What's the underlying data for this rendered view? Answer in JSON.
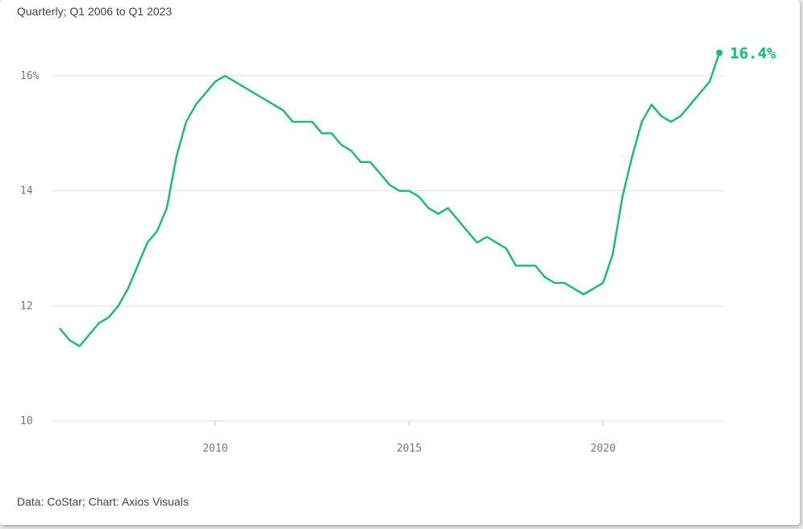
{
  "subtitle": "Quarterly; Q1 2006 to Q1 2023",
  "source": "Data: CoStar; Chart: Axios Visuals",
  "colors": {
    "line": "#10c06a",
    "grid": "#e2e2e2"
  },
  "chart_data": {
    "type": "line",
    "title": "",
    "xlabel": "",
    "ylabel": "",
    "xlim": [
      2006.0,
      2023.0
    ],
    "ylim": [
      10,
      16.8
    ],
    "y_ticks": [
      {
        "value": 10,
        "label": "10"
      },
      {
        "value": 12,
        "label": "12"
      },
      {
        "value": 14,
        "label": "14"
      },
      {
        "value": 16,
        "label": "16%"
      }
    ],
    "x_ticks": [
      {
        "value": 2010,
        "label": "2010"
      },
      {
        "value": 2015,
        "label": "2015"
      },
      {
        "value": 2020,
        "label": "2020"
      }
    ],
    "grid": "horizontal",
    "end_label": "16.4%",
    "series": [
      {
        "x": [
          "2006 Q1",
          "2006 Q2",
          "2006 Q3",
          "2006 Q4",
          "2007 Q1",
          "2007 Q2",
          "2007 Q3",
          "2007 Q4",
          "2008 Q1",
          "2008 Q2",
          "2008 Q3",
          "2008 Q4",
          "2009 Q1",
          "2009 Q2",
          "2009 Q3",
          "2009 Q4",
          "2010 Q1",
          "2010 Q2",
          "2010 Q3",
          "2010 Q4",
          "2011 Q1",
          "2011 Q2",
          "2011 Q3",
          "2011 Q4",
          "2012 Q1",
          "2012 Q2",
          "2012 Q3",
          "2012 Q4",
          "2013 Q1",
          "2013 Q2",
          "2013 Q3",
          "2013 Q4",
          "2014 Q1",
          "2014 Q2",
          "2014 Q3",
          "2014 Q4",
          "2015 Q1",
          "2015 Q2",
          "2015 Q3",
          "2015 Q4",
          "2016 Q1",
          "2016 Q2",
          "2016 Q3",
          "2016 Q4",
          "2017 Q1",
          "2017 Q2",
          "2017 Q3",
          "2017 Q4",
          "2018 Q1",
          "2018 Q2",
          "2018 Q3",
          "2018 Q4",
          "2019 Q1",
          "2019 Q2",
          "2019 Q3",
          "2019 Q4",
          "2020 Q1",
          "2020 Q2",
          "2020 Q3",
          "2020 Q4",
          "2021 Q1",
          "2021 Q2",
          "2021 Q3",
          "2021 Q4",
          "2022 Q1",
          "2022 Q2",
          "2022 Q3",
          "2022 Q4",
          "2023 Q1"
        ],
        "values": [
          11.6,
          11.4,
          11.3,
          11.5,
          11.7,
          11.8,
          12.0,
          12.3,
          12.7,
          13.1,
          13.3,
          13.7,
          14.6,
          15.2,
          15.5,
          15.7,
          15.9,
          16.0,
          15.9,
          15.8,
          15.7,
          15.6,
          15.5,
          15.4,
          15.2,
          15.2,
          15.2,
          15.0,
          15.0,
          14.8,
          14.7,
          14.5,
          14.5,
          14.3,
          14.1,
          14.0,
          14.0,
          13.9,
          13.7,
          13.6,
          13.7,
          13.5,
          13.3,
          13.1,
          13.2,
          13.1,
          13.0,
          12.7,
          12.7,
          12.7,
          12.5,
          12.4,
          12.4,
          12.3,
          12.2,
          12.3,
          12.4,
          12.9,
          13.9,
          14.6,
          15.2,
          15.5,
          15.3,
          15.2,
          15.3,
          15.5,
          15.7,
          15.9,
          16.4
        ]
      }
    ]
  }
}
